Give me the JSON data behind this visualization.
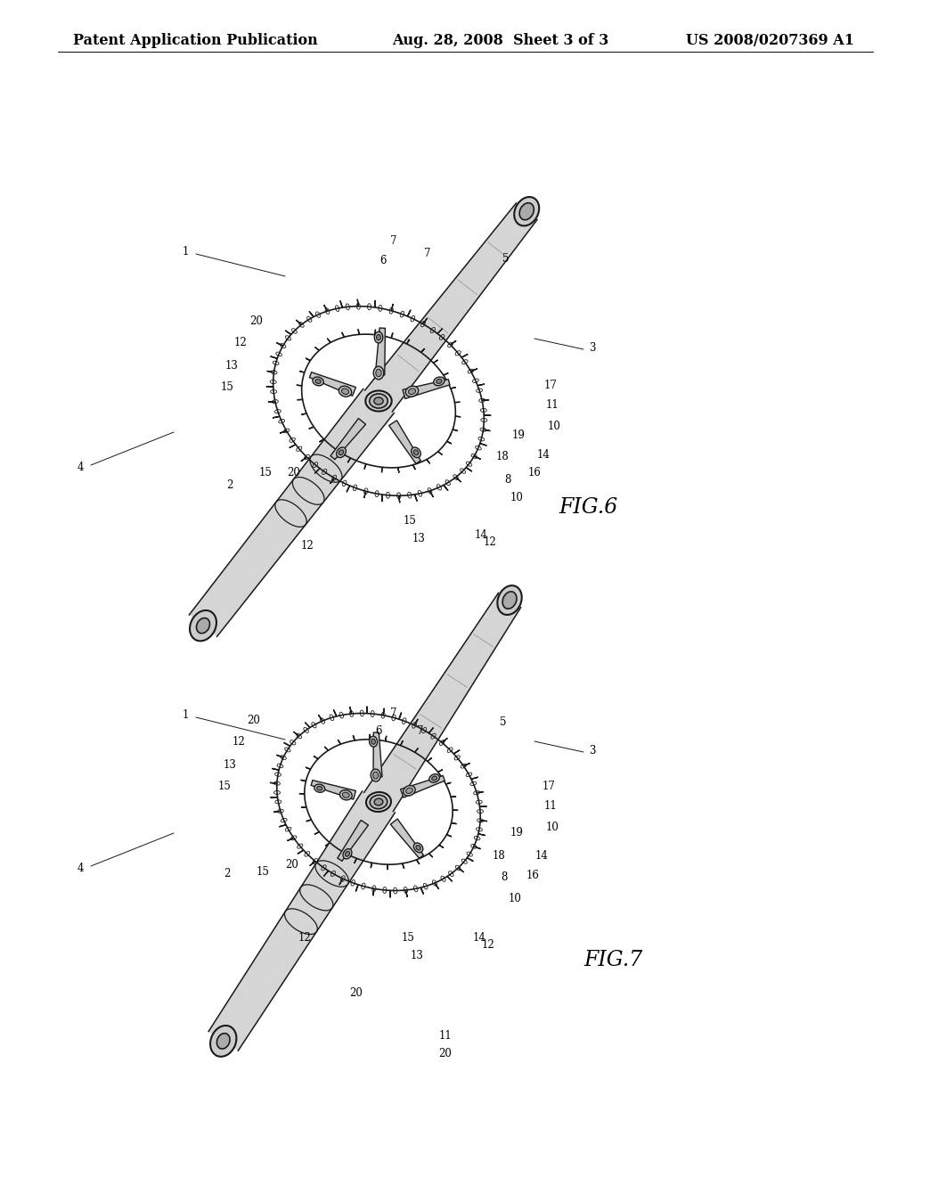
{
  "background_color": "#ffffff",
  "header_left": "Patent Application Publication",
  "header_center": "Aug. 28, 2008  Sheet 3 of 3",
  "header_right": "US 2008/0207369 A1",
  "header_fontsize": 11.5,
  "fig6_label": "FIG.6",
  "fig7_label": "FIG.7",
  "label_fontsize": 17,
  "ref_fontsize": 8.5,
  "line_color": "#1a1a1a"
}
